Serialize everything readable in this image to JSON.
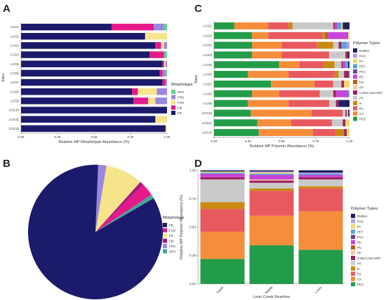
{
  "panels": {
    "a": "A",
    "b": "B",
    "c": "C",
    "d": "D"
  },
  "chart_data": [
    {
      "type": "bar",
      "orientation": "horizontal",
      "stacked": true,
      "panel": "A",
      "xlabel": "Relative MP Morphotype Abundance (%)",
      "ylabel": "Sites",
      "xlim": [
        0,
        1
      ],
      "xticks": [
        "0.00",
        "0.25",
        "0.50",
        "0.75",
        "1.00"
      ],
      "categories": [
        "LCG1",
        "LCG2",
        "LCG3",
        "LCG4",
        "LCG5",
        "LCG6",
        "LCG7",
        "LCG8",
        "LCG9",
        "LCG10",
        "LCG11",
        "LCG12"
      ],
      "legend": {
        "title": "Morphotype",
        "placement": "right"
      },
      "series": [
        {
          "name": "FR",
          "color": "#1b1a6b",
          "values": [
            0.62,
            0.85,
            0.92,
            0.88,
            0.97,
            0.95,
            0.97,
            0.76,
            0.77,
            1.0,
            0.92,
            0.99
          ]
        },
        {
          "name": "FM",
          "color": "#e5198a",
          "values": [
            0.29,
            0.0,
            0.04,
            0.1,
            0.01,
            0.02,
            0.02,
            0.04,
            0.1,
            0.0,
            0.0,
            0.0
          ]
        },
        {
          "name": "FLM",
          "color": "#f5e48a",
          "values": [
            0.0,
            0.15,
            0.02,
            0.0,
            0.01,
            0.0,
            0.0,
            0.13,
            0.05,
            0.0,
            0.08,
            0.01
          ]
        },
        {
          "name": "FRG",
          "color": "#9b86e0",
          "values": [
            0.07,
            0.0,
            0.02,
            0.0,
            0.01,
            0.02,
            0.01,
            0.07,
            0.08,
            0.0,
            0.0,
            0.0
          ]
        },
        {
          "name": "SPH",
          "color": "#5fd487",
          "values": [
            0.02,
            0.0,
            0.0,
            0.02,
            0.0,
            0.01,
            0.0,
            0.0,
            0.0,
            0.0,
            0.0,
            0.0
          ]
        }
      ]
    },
    {
      "type": "pie",
      "panel": "B",
      "legend": {
        "title": "Morphotype",
        "placement": "right"
      },
      "slices": [
        {
          "name": "FB",
          "color": "#1b1a6b",
          "value": 0.84
        },
        {
          "name": "FLM",
          "color": "#e5198a",
          "value": 0.03
        },
        {
          "name": "FR",
          "color": "#f5e48a",
          "value": 0.09
        },
        {
          "name": "FM",
          "color": "#a91a7a",
          "value": 0.01
        },
        {
          "name": "FRG",
          "color": "#9b86e0",
          "value": 0.02
        },
        {
          "name": "SPH",
          "color": "#4aa39a",
          "value": 0.01
        }
      ],
      "slice_order": [
        "FRG",
        "FR",
        "FM",
        "FLM",
        "SPH",
        "FB"
      ]
    },
    {
      "type": "bar",
      "orientation": "horizontal",
      "stacked": true,
      "panel": "C",
      "xlabel": "Relative MP Polymer Abundance (%)",
      "ylabel": "Sites",
      "xlim": [
        0,
        1
      ],
      "xticks": [
        "0.00",
        "0.25",
        "0.50",
        "0.75",
        "1.00"
      ],
      "categories": [
        "LCG1",
        "LCG2",
        "LCG3",
        "LCG4",
        "LCG5",
        "LCG6",
        "LCG7",
        "LCG8",
        "LCG9",
        "LCG10",
        "LCG11",
        "LCG12"
      ],
      "legend": {
        "title": "Polymer Types",
        "placement": "right"
      },
      "series": [
        {
          "name": "PES",
          "color": "#239c4a",
          "values": [
            0.15,
            0.28,
            0.28,
            0.28,
            0.48,
            0.25,
            0.42,
            0.28,
            0.25,
            0.27,
            0.32,
            0.33
          ]
        },
        {
          "name": "CA",
          "color": "#f58d3a",
          "values": [
            0.25,
            0.12,
            0.22,
            0.22,
            0.15,
            0.3,
            0.32,
            0.2,
            0.3,
            0.45,
            0.25,
            0.4
          ]
        },
        {
          "name": "RA",
          "color": "#e8595e",
          "values": [
            0.15,
            0.4,
            0.26,
            0.35,
            0.18,
            0.34,
            0.14,
            0.3,
            0.3,
            0.23,
            0.3,
            0.17
          ]
        },
        {
          "name": "N",
          "color": "#c98a12",
          "values": [
            0.03,
            0.02,
            0.12,
            0.0,
            0.08,
            0.03,
            0.0,
            0.0,
            0.0,
            0.0,
            0.0,
            0.06
          ]
        },
        {
          "name": "PS",
          "color": "#c9c9c9",
          "values": [
            0.3,
            0.0,
            0.04,
            0.12,
            0.05,
            0.04,
            0.06,
            0.1,
            0.05,
            0.02,
            0.08,
            0.0
          ]
        },
        {
          "name": "Cotton (Non-MP)",
          "color": "#a1205f",
          "values": [
            0.01,
            0.0,
            0.02,
            0.02,
            0.01,
            0.03,
            0.02,
            0.02,
            0.02,
            0.01,
            0.02,
            0.02
          ]
        },
        {
          "name": "PP",
          "color": "#f2c7a0",
          "values": [
            0.0,
            0.0,
            0.0,
            0.0,
            0.0,
            0.0,
            0.0,
            0.0,
            0.0,
            0.01,
            0.0,
            0.0
          ]
        },
        {
          "name": "PU",
          "color": "#b85e1a",
          "values": [
            0.0,
            0.02,
            0.0,
            0.0,
            0.0,
            0.0,
            0.0,
            0.0,
            0.0,
            0.0,
            0.0,
            0.0
          ]
        },
        {
          "name": "PE",
          "color": "#c645d6",
          "values": [
            0.02,
            0.15,
            0.0,
            0.0,
            0.02,
            0.0,
            0.0,
            0.09,
            0.0,
            0.0,
            0.0,
            0.0
          ]
        },
        {
          "name": "PVC",
          "color": "#6f4a8f",
          "values": [
            0.0,
            0.0,
            0.0,
            0.0,
            0.0,
            0.01,
            0.0,
            0.0,
            0.0,
            0.0,
            0.0,
            0.0
          ]
        },
        {
          "name": "PET",
          "color": "#58a6d6",
          "values": [
            0.03,
            0.0,
            0.04,
            0.0,
            0.02,
            0.0,
            0.0,
            0.01,
            0.0,
            0.0,
            0.0,
            0.0
          ]
        },
        {
          "name": "PA",
          "color": "#eed96a",
          "values": [
            0.01,
            0.01,
            0.0,
            0.0,
            0.0,
            0.0,
            0.04,
            0.0,
            0.0,
            0.0,
            0.03,
            0.02
          ]
        },
        {
          "name": "PAN",
          "color": "#b89be8",
          "values": [
            0.0,
            0.0,
            0.02,
            0.0,
            0.0,
            0.0,
            0.0,
            0.0,
            0.0,
            0.0,
            0.0,
            0.0
          ]
        },
        {
          "name": "Rubber",
          "color": "#1f1f5e",
          "values": [
            0.05,
            0.0,
            0.0,
            0.01,
            0.01,
            0.0,
            0.0,
            0.0,
            0.08,
            0.01,
            0.0,
            0.0
          ]
        }
      ]
    },
    {
      "type": "bar",
      "orientation": "vertical",
      "stacked": true,
      "panel": "D",
      "xlabel": "Leon Creek Reaches",
      "ylabel": "Relative MP Polymer Abundance (%)",
      "ylim": [
        0,
        1
      ],
      "yticks": [
        "0.00",
        "0.25",
        "0.50",
        "0.75",
        "1.00"
      ],
      "categories": [
        "Upper",
        "Middle",
        "Lower"
      ],
      "legend": {
        "title": "Polymer Types",
        "placement": "right"
      },
      "series": [
        {
          "name": "PES",
          "color": "#239c4a",
          "values": [
            0.22,
            0.34,
            0.3
          ]
        },
        {
          "name": "CA",
          "color": "#f58d3a",
          "values": [
            0.24,
            0.26,
            0.34
          ]
        },
        {
          "name": "RA",
          "color": "#e8595e",
          "values": [
            0.2,
            0.22,
            0.2
          ]
        },
        {
          "name": "N",
          "color": "#c98a12",
          "values": [
            0.06,
            0.02,
            0.02
          ]
        },
        {
          "name": "PS",
          "color": "#c9c9c9",
          "values": [
            0.2,
            0.05,
            0.06
          ]
        },
        {
          "name": "Cotton (Non-MP)",
          "color": "#a1205f",
          "values": [
            0.02,
            0.02,
            0.02
          ]
        },
        {
          "name": "PP",
          "color": "#f2c7a0",
          "values": [
            0.0,
            0.01,
            0.0
          ]
        },
        {
          "name": "PU",
          "color": "#b85e1a",
          "values": [
            0.0,
            0.0,
            0.0
          ]
        },
        {
          "name": "PE",
          "color": "#c645d6",
          "values": [
            0.03,
            0.04,
            0.02
          ]
        },
        {
          "name": "PVC",
          "color": "#6f4a8f",
          "values": [
            0.0,
            0.0,
            0.0
          ]
        },
        {
          "name": "PET",
          "color": "#58a6d6",
          "values": [
            0.01,
            0.01,
            0.01
          ]
        },
        {
          "name": "PA",
          "color": "#eed96a",
          "values": [
            0.01,
            0.01,
            0.0
          ]
        },
        {
          "name": "PAN",
          "color": "#b89be8",
          "values": [
            0.0,
            0.01,
            0.01
          ]
        },
        {
          "name": "Rubber",
          "color": "#1f1f5e",
          "values": [
            0.01,
            0.01,
            0.02
          ]
        }
      ]
    }
  ]
}
